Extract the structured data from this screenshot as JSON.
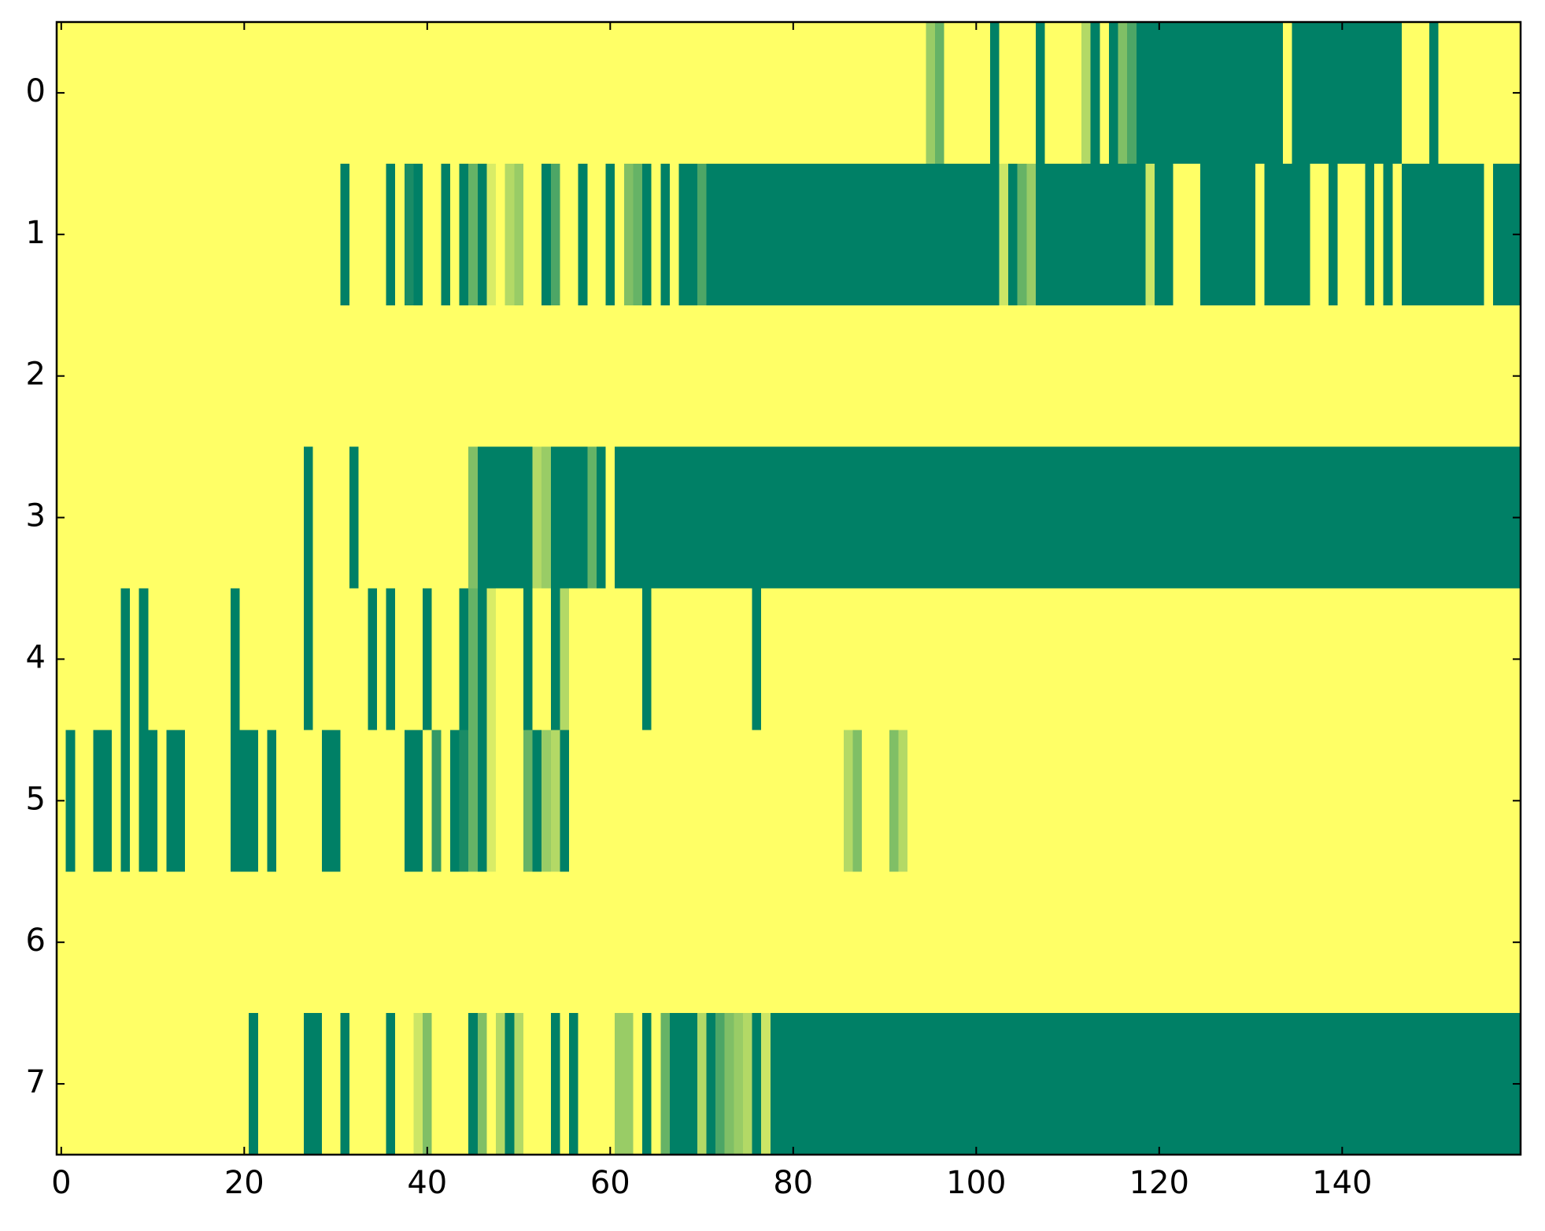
{
  "chart_data": {
    "type": "heatmap",
    "colormap": "summer",
    "xlim": [
      -0.5,
      159.5
    ],
    "ylim": [
      7.5,
      -0.5
    ],
    "xticks": [
      0,
      20,
      40,
      60,
      80,
      100,
      120,
      140
    ],
    "yticks": [
      0,
      1,
      2,
      3,
      4,
      5,
      6,
      7
    ],
    "z": [
      [
        1,
        1,
        1,
        1,
        1,
        1,
        1,
        1,
        1,
        1,
        1,
        1,
        1,
        1,
        1,
        1,
        1,
        1,
        1,
        1,
        1,
        1,
        1,
        1,
        1,
        1,
        1,
        1,
        1,
        1,
        1,
        1,
        1,
        1,
        1,
        1,
        1,
        1,
        1,
        1,
        1,
        1,
        1,
        1,
        1,
        1,
        1,
        1,
        1,
        1,
        1,
        1,
        1,
        1,
        1,
        1,
        1,
        1,
        1,
        1,
        1,
        1,
        1,
        1,
        1,
        1,
        1,
        1,
        1,
        1,
        1,
        1,
        1,
        1,
        1,
        1,
        1,
        1,
        1,
        1,
        1,
        1,
        1,
        1,
        1,
        1,
        1,
        1,
        1,
        1,
        1,
        1,
        1,
        1,
        1,
        0.6,
        0.4,
        1,
        1,
        1,
        1,
        1,
        0,
        1,
        1,
        1,
        1,
        0,
        1,
        1,
        1,
        1,
        0.7,
        0,
        1,
        0,
        0.5,
        0.3,
        0,
        0,
        0,
        0,
        0,
        0,
        0,
        0,
        0,
        0,
        0,
        0,
        0,
        0,
        0,
        0,
        1,
        0,
        0,
        0,
        0,
        0,
        0,
        0,
        0,
        0,
        0,
        0,
        0,
        1,
        1,
        1,
        0,
        1,
        1,
        1,
        1,
        1,
        1,
        1,
        1,
        1
      ],
      [
        1,
        1,
        1,
        1,
        1,
        1,
        1,
        1,
        1,
        1,
        1,
        1,
        1,
        1,
        1,
        1,
        1,
        1,
        1,
        1,
        1,
        1,
        1,
        1,
        1,
        1,
        1,
        1,
        1,
        1,
        1,
        0,
        1,
        1,
        1,
        1,
        0,
        1,
        0.1,
        0,
        1,
        1,
        0,
        1,
        0,
        0.4,
        0,
        0.85,
        1,
        0.7,
        0.6,
        1,
        1,
        0,
        0.3,
        1,
        1,
        0,
        1,
        1,
        0,
        1,
        0.5,
        0.4,
        0,
        1,
        0,
        1,
        0,
        0,
        0.3,
        0,
        0,
        0,
        0,
        0,
        0,
        0,
        0,
        0,
        0,
        0,
        0,
        0,
        0,
        0,
        0,
        0,
        0,
        0,
        0,
        0,
        0,
        0,
        0,
        0,
        0,
        0,
        0,
        0,
        0,
        0,
        0,
        0.8,
        0,
        0.4,
        0.6,
        0,
        0,
        0,
        0,
        0,
        0,
        0,
        0,
        0,
        0,
        0,
        0,
        0.8,
        0,
        0,
        1,
        1,
        1,
        0,
        0,
        0,
        0,
        0,
        0,
        1,
        0,
        0,
        0,
        0,
        0,
        1,
        1,
        0,
        1,
        1,
        1,
        0,
        1,
        0,
        1,
        0,
        0,
        0,
        0,
        0,
        0,
        0,
        0,
        0,
        1,
        0,
        0,
        0
      ],
      [
        1,
        1,
        1,
        1,
        1,
        1,
        1,
        1,
        1,
        1,
        1,
        1,
        1,
        1,
        1,
        1,
        1,
        1,
        1,
        1,
        1,
        1,
        1,
        1,
        1,
        1,
        1,
        1,
        1,
        1,
        1,
        1,
        1,
        1,
        1,
        1,
        1,
        1,
        1,
        1,
        1,
        1,
        1,
        1,
        1,
        1,
        1,
        1,
        1,
        1,
        1,
        1,
        1,
        1,
        1,
        1,
        1,
        1,
        1,
        1,
        1,
        1,
        1,
        1,
        1,
        1,
        1,
        1,
        1,
        1,
        1,
        1,
        1,
        1,
        1,
        1,
        1,
        1,
        1,
        1,
        1,
        1,
        1,
        1,
        1,
        1,
        1,
        1,
        1,
        1,
        1,
        1,
        1,
        1,
        1,
        1,
        1,
        1,
        1,
        1,
        1,
        1,
        1,
        1,
        1,
        1,
        1,
        1,
        1,
        1,
        1,
        1,
        1,
        1,
        1,
        1,
        1,
        1,
        1,
        1,
        1,
        1,
        1,
        1,
        1,
        1,
        1,
        1,
        1,
        1,
        1,
        1,
        1,
        1,
        1,
        1,
        1,
        1,
        1,
        1,
        1,
        1,
        1,
        1,
        1,
        1,
        1,
        1,
        1,
        1,
        1,
        1,
        1,
        1,
        1,
        1,
        1,
        1,
        1,
        1
      ],
      [
        1,
        1,
        1,
        1,
        1,
        1,
        1,
        1,
        1,
        1,
        1,
        1,
        1,
        1,
        1,
        1,
        1,
        1,
        1,
        1,
        1,
        1,
        1,
        1,
        1,
        1,
        1,
        0,
        1,
        1,
        1,
        1,
        0,
        1,
        1,
        1,
        1,
        1,
        1,
        1,
        1,
        1,
        1,
        1,
        1,
        0.5,
        0,
        0,
        0,
        0,
        0,
        0,
        0.7,
        0.6,
        0,
        0,
        0,
        0,
        0.4,
        0,
        1,
        0,
        0,
        0,
        0,
        0,
        0,
        0,
        0,
        0,
        0,
        0,
        0,
        0,
        0,
        0,
        0,
        0,
        0,
        0,
        0,
        0,
        0,
        0,
        0,
        0,
        0,
        0,
        0,
        0,
        0,
        0,
        0,
        0,
        0,
        0,
        0,
        0,
        0,
        0,
        0,
        0,
        0,
        0,
        0,
        0,
        0,
        0,
        0,
        0,
        0,
        0,
        0,
        0,
        0,
        0,
        0,
        0,
        0,
        0,
        0,
        0,
        0,
        0,
        0,
        0,
        0,
        0,
        0,
        0,
        0,
        0,
        0,
        0,
        0,
        0,
        0,
        0,
        0,
        0,
        0,
        0,
        0,
        0,
        0,
        0,
        0,
        0,
        0,
        0,
        0,
        0,
        0,
        0,
        0,
        0,
        0,
        0,
        0,
        0
      ],
      [
        1,
        1,
        1,
        1,
        1,
        1,
        1,
        0,
        1,
        0,
        1,
        1,
        1,
        1,
        1,
        1,
        1,
        1,
        1,
        0,
        1,
        1,
        1,
        1,
        1,
        1,
        1,
        0,
        1,
        1,
        1,
        1,
        1,
        1,
        0,
        1,
        0,
        1,
        1,
        1,
        0,
        1,
        1,
        1,
        0,
        0.4,
        0,
        0.85,
        1,
        1,
        1,
        0,
        1,
        1,
        0,
        0.7,
        1,
        1,
        1,
        1,
        1,
        1,
        1,
        1,
        0,
        1,
        1,
        1,
        1,
        1,
        1,
        1,
        1,
        1,
        1,
        1,
        0,
        1,
        1,
        1,
        1,
        1,
        1,
        1,
        1,
        1,
        1,
        1,
        1,
        1,
        1,
        1,
        1,
        1,
        1,
        1,
        1,
        1,
        1,
        1,
        1,
        1,
        1,
        1,
        1,
        1,
        1,
        1,
        1,
        1,
        1,
        1,
        1,
        1,
        1,
        1,
        1,
        1,
        1,
        1,
        1,
        1,
        1,
        1,
        1,
        1,
        1,
        1,
        1,
        1,
        1,
        1,
        1,
        1,
        1,
        1,
        1,
        1,
        1,
        1,
        1,
        1,
        1,
        1,
        1,
        1,
        1,
        1,
        1,
        1,
        1,
        1,
        1,
        1,
        1,
        1,
        1,
        1,
        1,
        1
      ],
      [
        1,
        0,
        1,
        1,
        0,
        0,
        1,
        0,
        1,
        0,
        0,
        1,
        0,
        0,
        1,
        1,
        1,
        1,
        1,
        0,
        0,
        0,
        1,
        0,
        1,
        1,
        1,
        1,
        1,
        0,
        0,
        1,
        1,
        1,
        1,
        1,
        1,
        1,
        0,
        0,
        1,
        0.2,
        1,
        0,
        0.1,
        0.4,
        0,
        0.85,
        1,
        1,
        1,
        0.4,
        0,
        0.6,
        0.7,
        0,
        1,
        1,
        1,
        1,
        1,
        1,
        1,
        1,
        1,
        1,
        1,
        1,
        1,
        1,
        1,
        1,
        1,
        1,
        1,
        1,
        1,
        1,
        1,
        1,
        1,
        1,
        1,
        1,
        1,
        1,
        0.7,
        0.5,
        1,
        1,
        1,
        0.5,
        0.7,
        1,
        1,
        1,
        1,
        1,
        1,
        1,
        1,
        1,
        1,
        1,
        1,
        1,
        1,
        1,
        1,
        1,
        1,
        1,
        1,
        1,
        1,
        1,
        1,
        1,
        1,
        1,
        1,
        1,
        1,
        1,
        1,
        1,
        1,
        1,
        1,
        1,
        1,
        1,
        1,
        1,
        1,
        1,
        1,
        1,
        1,
        1,
        1,
        1,
        1,
        1,
        1,
        1,
        1,
        1,
        1,
        1,
        1,
        1,
        1,
        1,
        1,
        1,
        1,
        1,
        1,
        1
      ],
      [
        1,
        1,
        1,
        1,
        1,
        1,
        1,
        1,
        1,
        1,
        1,
        1,
        1,
        1,
        1,
        1,
        1,
        1,
        1,
        1,
        1,
        1,
        1,
        1,
        1,
        1,
        1,
        1,
        1,
        1,
        1,
        1,
        1,
        1,
        1,
        1,
        1,
        1,
        1,
        1,
        1,
        1,
        1,
        1,
        1,
        1,
        1,
        1,
        1,
        1,
        1,
        1,
        1,
        1,
        1,
        1,
        1,
        1,
        1,
        1,
        1,
        1,
        1,
        1,
        1,
        1,
        1,
        1,
        1,
        1,
        1,
        1,
        1,
        1,
        1,
        1,
        1,
        1,
        1,
        1,
        1,
        1,
        1,
        1,
        1,
        1,
        1,
        1,
        1,
        1,
        1,
        1,
        1,
        1,
        1,
        1,
        1,
        1,
        1,
        1,
        1,
        1,
        1,
        1,
        1,
        1,
        1,
        1,
        1,
        1,
        1,
        1,
        1,
        1,
        1,
        1,
        1,
        1,
        1,
        1,
        1,
        1,
        1,
        1,
        1,
        1,
        1,
        1,
        1,
        1,
        1,
        1,
        1,
        1,
        1,
        1,
        1,
        1,
        1,
        1,
        1,
        1,
        1,
        1,
        1,
        1,
        1,
        1,
        1,
        1,
        1,
        1,
        1,
        1,
        1,
        1,
        1,
        1,
        1,
        1
      ],
      [
        1,
        1,
        1,
        1,
        1,
        1,
        1,
        1,
        1,
        1,
        1,
        1,
        1,
        1,
        1,
        1,
        1,
        1,
        1,
        1,
        1,
        0,
        1,
        1,
        1,
        1,
        1,
        0,
        0,
        1,
        1,
        0,
        1,
        1,
        1,
        1,
        0,
        1,
        1,
        0.8,
        0.5,
        1,
        1,
        1,
        1,
        0,
        0.5,
        1,
        0.7,
        0,
        0.7,
        1,
        1,
        1,
        0,
        1,
        0,
        1,
        1,
        1,
        1,
        0.6,
        0.6,
        1,
        0,
        1,
        0.4,
        0,
        0,
        0,
        0.7,
        0,
        0.3,
        0.5,
        0.6,
        0.7,
        0,
        0.8,
        0,
        0,
        0,
        0,
        0,
        0,
        0,
        0,
        0,
        0,
        0,
        0,
        0,
        0,
        0,
        0,
        0,
        0,
        0,
        0,
        0,
        0,
        0,
        0,
        0,
        0,
        0,
        0,
        0,
        0,
        0,
        0,
        0,
        0,
        0,
        0,
        0,
        0,
        0,
        0,
        0,
        0,
        0,
        0,
        0,
        0,
        0,
        0,
        0,
        0,
        0,
        0,
        0,
        0,
        0,
        0,
        0,
        0,
        0,
        0,
        0,
        0,
        0,
        0,
        0,
        0,
        0,
        0,
        0,
        0,
        0,
        0,
        0,
        0,
        0,
        0,
        0,
        0,
        0,
        0,
        0,
        0
      ]
    ]
  }
}
